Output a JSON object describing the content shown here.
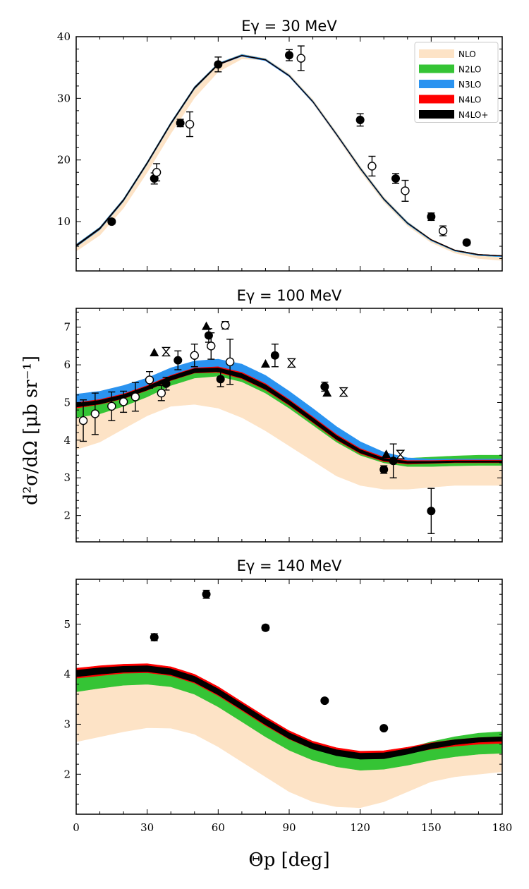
{
  "figure": {
    "ylabel": "d²σ/dΩ [μb sr⁻¹]",
    "xlabel": "Θp [deg]",
    "xticks": [
      "0",
      "30",
      "60",
      "90",
      "120",
      "150",
      "180"
    ]
  },
  "colors": {
    "NLO": "#fde3c6",
    "N2LO": "#35c435",
    "N3LO": "#2a93f0",
    "N4LO": "#ff0000",
    "N4LO+": "#000000"
  },
  "legend": [
    {
      "name": "NLO",
      "color": "#fde3c6"
    },
    {
      "name": "N2LO",
      "color": "#35c435"
    },
    {
      "name": "N3LO",
      "color": "#2a93f0"
    },
    {
      "name": "N4LO",
      "color": "#ff0000"
    },
    {
      "name": "N4LO+",
      "color": "#000000"
    }
  ],
  "chart_data": [
    {
      "type": "line",
      "title": "Eγ = 30 MeV",
      "xlim": [
        0,
        180
      ],
      "ylim": [
        2,
        40
      ],
      "yticks": [
        10,
        20,
        30,
        40
      ],
      "legend_position": "top-right",
      "bands": {
        "x": [
          0,
          10,
          20,
          30,
          40,
          50,
          60,
          70,
          80,
          90,
          100,
          110,
          120,
          130,
          140,
          150,
          160,
          170,
          180
        ],
        "NLO": {
          "lower": [
            5.2,
            7.8,
            12.2,
            18.0,
            24.3,
            30.1,
            34.3,
            36.4,
            36.2,
            33.6,
            29.2,
            23.8,
            18.2,
            13.2,
            9.3,
            6.6,
            4.9,
            4.0,
            3.7
          ],
          "upper": [
            6.3,
            9.0,
            13.6,
            19.6,
            26.0,
            31.8,
            35.7,
            37.2,
            36.5,
            34.0,
            29.8,
            24.5,
            19.0,
            14.0,
            10.0,
            7.2,
            5.4,
            4.6,
            4.4
          ]
        },
        "N2LO": {
          "lower": [
            5.9,
            8.7,
            13.3,
            19.3,
            25.7,
            31.5,
            35.4,
            36.9,
            36.2,
            33.6,
            29.4,
            24.1,
            18.5,
            13.5,
            9.6,
            6.9,
            5.2,
            4.5,
            4.3
          ],
          "upper": [
            6.3,
            9.1,
            13.7,
            19.7,
            26.1,
            31.9,
            35.7,
            37.1,
            36.4,
            33.8,
            29.6,
            24.3,
            18.8,
            13.8,
            9.9,
            7.1,
            5.4,
            4.7,
            4.5
          ]
        },
        "N3LO": {
          "lower": [
            5.9,
            8.7,
            13.3,
            19.3,
            25.7,
            31.5,
            35.4,
            36.8,
            36.1,
            33.5,
            29.3,
            24.0,
            18.5,
            13.5,
            9.6,
            6.9,
            5.2,
            4.5,
            4.3
          ],
          "upper": [
            6.3,
            9.1,
            13.7,
            19.7,
            26.1,
            31.9,
            35.7,
            37.1,
            36.4,
            33.8,
            29.6,
            24.3,
            18.8,
            13.8,
            9.9,
            7.1,
            5.4,
            4.7,
            4.5
          ]
        },
        "N4LO": {
          "lower": [
            6.0,
            8.8,
            13.4,
            19.4,
            25.8,
            31.6,
            35.4,
            36.9,
            36.2,
            33.6,
            29.4,
            24.1,
            18.6,
            13.6,
            9.7,
            7.0,
            5.3,
            4.6,
            4.4
          ],
          "upper": [
            6.2,
            9.0,
            13.6,
            19.6,
            26.0,
            31.8,
            35.6,
            37.0,
            36.3,
            33.7,
            29.5,
            24.2,
            18.7,
            13.7,
            9.8,
            7.1,
            5.4,
            4.7,
            4.5
          ]
        },
        "N4LO+": {
          "lower": [
            6.0,
            8.8,
            13.4,
            19.4,
            25.8,
            31.6,
            35.4,
            36.9,
            36.2,
            33.6,
            29.4,
            24.1,
            18.6,
            13.6,
            9.7,
            7.0,
            5.3,
            4.6,
            4.4
          ],
          "upper": [
            6.2,
            9.0,
            13.6,
            19.6,
            26.0,
            31.8,
            35.6,
            37.0,
            36.3,
            33.7,
            29.5,
            24.2,
            18.7,
            13.7,
            9.8,
            7.1,
            5.4,
            4.7,
            4.5
          ]
        }
      },
      "data_series": [
        {
          "marker": "filled-circle",
          "points": [
            {
              "x": 15,
              "y": 10.0,
              "err": 0.4
            },
            {
              "x": 33,
              "y": 17.0,
              "err": 0.9
            },
            {
              "x": 44,
              "y": 26.0,
              "err": 0.6
            },
            {
              "x": 60,
              "y": 35.5,
              "err": 1.2
            },
            {
              "x": 90,
              "y": 37.0,
              "err": 0.9
            },
            {
              "x": 120,
              "y": 26.5,
              "err": 1.0
            },
            {
              "x": 135,
              "y": 17.0,
              "err": 0.8
            },
            {
              "x": 150,
              "y": 10.8,
              "err": 0.6
            },
            {
              "x": 165,
              "y": 6.6,
              "err": 0.4
            }
          ]
        },
        {
          "marker": "open-circle",
          "points": [
            {
              "x": 34,
              "y": 18.0,
              "err": 1.4
            },
            {
              "x": 48,
              "y": 25.8,
              "err": 2.0
            },
            {
              "x": 95,
              "y": 36.5,
              "err": 2.0
            },
            {
              "x": 125,
              "y": 19.0,
              "err": 1.6
            },
            {
              "x": 139,
              "y": 15.0,
              "err": 1.7
            },
            {
              "x": 155,
              "y": 8.5,
              "err": 0.8
            }
          ]
        }
      ]
    },
    {
      "type": "line",
      "title": "Eγ = 100 MeV",
      "xlim": [
        0,
        180
      ],
      "ylim": [
        1.3,
        7.5
      ],
      "yticks": [
        2,
        3,
        4,
        5,
        6,
        7
      ],
      "bands": {
        "x": [
          0,
          10,
          20,
          30,
          40,
          50,
          60,
          70,
          80,
          90,
          100,
          110,
          120,
          130,
          140,
          150,
          160,
          170,
          180
        ],
        "NLO": {
          "lower": [
            3.75,
            3.95,
            4.3,
            4.65,
            4.9,
            4.95,
            4.85,
            4.6,
            4.25,
            3.85,
            3.45,
            3.05,
            2.8,
            2.7,
            2.7,
            2.75,
            2.8,
            2.8,
            2.8
          ],
          "upper": [
            5.2,
            5.3,
            5.45,
            5.65,
            5.85,
            6.0,
            6.0,
            5.8,
            5.45,
            5.0,
            4.55,
            4.05,
            3.7,
            3.5,
            3.4,
            3.45,
            3.5,
            3.55,
            3.55
          ]
        },
        "N2LO": {
          "lower": [
            4.6,
            4.7,
            4.9,
            5.15,
            5.45,
            5.65,
            5.7,
            5.55,
            5.25,
            4.85,
            4.4,
            3.95,
            3.6,
            3.4,
            3.3,
            3.3,
            3.32,
            3.33,
            3.33
          ],
          "upper": [
            5.1,
            5.2,
            5.35,
            5.55,
            5.8,
            5.98,
            6.0,
            5.85,
            5.55,
            5.15,
            4.68,
            4.2,
            3.84,
            3.62,
            3.52,
            3.55,
            3.58,
            3.6,
            3.6
          ]
        },
        "N3LO": {
          "lower": [
            4.95,
            5.02,
            5.15,
            5.35,
            5.6,
            5.8,
            5.85,
            5.7,
            5.4,
            5.0,
            4.55,
            4.1,
            3.73,
            3.5,
            3.4,
            3.4,
            3.42,
            3.42,
            3.43
          ],
          "upper": [
            5.22,
            5.3,
            5.45,
            5.65,
            5.92,
            6.1,
            6.15,
            6.02,
            5.72,
            5.3,
            4.84,
            4.36,
            3.96,
            3.68,
            3.53,
            3.5,
            3.5,
            3.5,
            3.5
          ]
        },
        "N4LO": {
          "lower": [
            4.85,
            4.95,
            5.1,
            5.32,
            5.58,
            5.78,
            5.8,
            5.63,
            5.33,
            4.92,
            4.46,
            4.0,
            3.64,
            3.43,
            3.36,
            3.38,
            3.4,
            3.4,
            3.4
          ],
          "upper": [
            5.0,
            5.08,
            5.23,
            5.45,
            5.72,
            5.92,
            5.95,
            5.8,
            5.5,
            5.08,
            4.62,
            4.15,
            3.78,
            3.55,
            3.46,
            3.46,
            3.47,
            3.47,
            3.47
          ]
        },
        "N4LO+": {
          "lower": [
            4.88,
            4.96,
            5.11,
            5.33,
            5.59,
            5.79,
            5.82,
            5.65,
            5.35,
            4.94,
            4.48,
            4.02,
            3.66,
            3.45,
            3.38,
            3.39,
            3.41,
            3.41,
            3.41
          ],
          "upper": [
            4.98,
            5.06,
            5.21,
            5.43,
            5.7,
            5.9,
            5.92,
            5.77,
            5.47,
            5.05,
            4.59,
            4.12,
            3.75,
            3.52,
            3.44,
            3.44,
            3.45,
            3.45,
            3.45
          ]
        }
      },
      "data_series": [
        {
          "marker": "filled-circle",
          "points": [
            {
              "x": 38,
              "y": 5.5,
              "err": 0.17
            },
            {
              "x": 43,
              "y": 6.12,
              "err": 0.25
            },
            {
              "x": 56,
              "y": 6.78,
              "err": 0.18
            },
            {
              "x": 61,
              "y": 5.62,
              "err": 0.2
            },
            {
              "x": 84,
              "y": 6.25,
              "err": 0.3
            },
            {
              "x": 105,
              "y": 5.42,
              "err": 0.12
            },
            {
              "x": 130,
              "y": 3.22,
              "err": 0.1
            },
            {
              "x": 134,
              "y": 3.45,
              "err": 0.45
            },
            {
              "x": 150,
              "y": 2.12,
              "err": 0.6
            }
          ]
        },
        {
          "marker": "open-circle",
          "points": [
            {
              "x": 3,
              "y": 4.52,
              "err": 0.55
            },
            {
              "x": 8,
              "y": 4.7,
              "err": 0.55
            },
            {
              "x": 15,
              "y": 4.9,
              "err": 0.38
            },
            {
              "x": 20,
              "y": 5.02,
              "err": 0.28
            },
            {
              "x": 25,
              "y": 5.15,
              "err": 0.38
            },
            {
              "x": 31,
              "y": 5.6,
              "err": 0.22
            },
            {
              "x": 36,
              "y": 5.25,
              "err": 0.2
            },
            {
              "x": 50,
              "y": 6.25,
              "err": 0.3
            },
            {
              "x": 57,
              "y": 6.5,
              "err": 0.35
            },
            {
              "x": 63,
              "y": 7.05,
              "err": 0.1
            },
            {
              "x": 65,
              "y": 6.08,
              "err": 0.6
            }
          ]
        },
        {
          "marker": "filled-triangle",
          "points": [
            {
              "x": 33,
              "y": 6.32
            },
            {
              "x": 55,
              "y": 7.02
            },
            {
              "x": 80,
              "y": 6.02
            },
            {
              "x": 106,
              "y": 5.25
            },
            {
              "x": 131,
              "y": 3.62
            }
          ]
        },
        {
          "marker": "hourglass",
          "points": [
            {
              "x": 38,
              "y": 6.35
            },
            {
              "x": 91,
              "y": 6.05
            },
            {
              "x": 113,
              "y": 5.28
            },
            {
              "x": 137,
              "y": 3.62
            }
          ]
        }
      ]
    },
    {
      "type": "line",
      "title": "Eγ = 140 MeV",
      "xlim": [
        0,
        180
      ],
      "ylim": [
        1.2,
        5.9
      ],
      "yticks": [
        2,
        3,
        4,
        5
      ],
      "bands": {
        "x": [
          0,
          10,
          20,
          30,
          40,
          50,
          60,
          70,
          80,
          90,
          100,
          110,
          120,
          130,
          140,
          150,
          160,
          170,
          180
        ],
        "NLO": {
          "lower": [
            2.65,
            2.75,
            2.85,
            2.93,
            2.92,
            2.8,
            2.55,
            2.25,
            1.95,
            1.65,
            1.45,
            1.35,
            1.33,
            1.45,
            1.65,
            1.85,
            1.95,
            2.0,
            2.05
          ],
          "upper": [
            3.95,
            4.0,
            4.0,
            4.02,
            4.0,
            3.88,
            3.62,
            3.3,
            3.0,
            2.75,
            2.55,
            2.42,
            2.35,
            2.35,
            2.4,
            2.5,
            2.55,
            2.6,
            2.62
          ]
        },
        "N2LO": {
          "lower": [
            3.65,
            3.72,
            3.78,
            3.8,
            3.75,
            3.6,
            3.35,
            3.05,
            2.75,
            2.48,
            2.28,
            2.15,
            2.08,
            2.1,
            2.18,
            2.28,
            2.35,
            2.4,
            2.42
          ],
          "upper": [
            4.05,
            4.1,
            4.12,
            4.12,
            4.05,
            3.9,
            3.65,
            3.35,
            3.05,
            2.8,
            2.6,
            2.48,
            2.42,
            2.44,
            2.52,
            2.65,
            2.75,
            2.82,
            2.85
          ]
        },
        "N3LO": {
          "lower": [
            3.95,
            4.0,
            4.05,
            4.05,
            4.0,
            3.85,
            3.6,
            3.3,
            3.0,
            2.75,
            2.55,
            2.42,
            2.38,
            2.4,
            2.48,
            2.56,
            2.62,
            2.66,
            2.68
          ]
        },
        "N4LO": {
          "lower": [
            3.92,
            3.97,
            4.02,
            4.03,
            3.97,
            3.82,
            3.57,
            3.27,
            2.97,
            2.7,
            2.5,
            2.38,
            2.32,
            2.34,
            2.42,
            2.5,
            2.56,
            2.6,
            2.62
          ],
          "upper": [
            4.12,
            4.17,
            4.2,
            4.21,
            4.15,
            4.0,
            3.75,
            3.45,
            3.15,
            2.87,
            2.66,
            2.53,
            2.46,
            2.47,
            2.54,
            2.63,
            2.69,
            2.73,
            2.75
          ]
        },
        "N4LO+": {
          "lower": [
            3.95,
            4.0,
            4.04,
            4.05,
            3.99,
            3.84,
            3.59,
            3.29,
            2.99,
            2.71,
            2.5,
            2.37,
            2.3,
            2.31,
            2.4,
            2.51,
            2.59,
            2.64,
            2.66
          ],
          "upper": [
            4.08,
            4.13,
            4.16,
            4.17,
            4.11,
            3.96,
            3.71,
            3.41,
            3.11,
            2.83,
            2.62,
            2.49,
            2.42,
            2.43,
            2.51,
            2.62,
            2.69,
            2.73,
            2.75
          ]
        }
      },
      "data_series": [
        {
          "marker": "filled-circle",
          "points": [
            {
              "x": 33,
              "y": 4.74,
              "err": 0.07
            },
            {
              "x": 55,
              "y": 5.6,
              "err": 0.08
            },
            {
              "x": 80,
              "y": 4.93,
              "err": 0.05
            },
            {
              "x": 105,
              "y": 3.47,
              "err": 0.04
            },
            {
              "x": 130,
              "y": 2.92,
              "err": 0.03
            }
          ]
        }
      ]
    }
  ]
}
